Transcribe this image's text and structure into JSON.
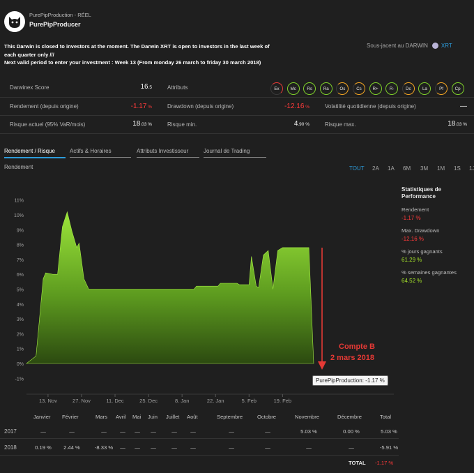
{
  "header": {
    "account_type": "PurePipProduction - RÉEL",
    "producer": "PurePipProducer"
  },
  "notice": {
    "line1": "This Darwin is closed to investors at the moment. The Darwin XRT is open to investors in the last week of each quarter only ///",
    "line2": "Next valid period to enter your investment : Week 13 (From monday 26 march to friday 30 march 2018)"
  },
  "underlying": {
    "label": "Sous-jacent au DARWIN",
    "symbol": "XRT",
    "dot_color": "#b9b3d6"
  },
  "metrics": {
    "darwinex_score_label": "Darwinex Score",
    "darwinex_score": "16",
    "darwinex_score_dec": ".5",
    "attributes_label": "Attributs",
    "rendement_label": "Rendement (depuis origine)",
    "rendement": "-1.17",
    "rendement_unit": " %",
    "drawdown_label": "Drawdown (depuis origine)",
    "drawdown": "-12.16",
    "drawdown_unit": " %",
    "volatility_label": "Volatilité quotidienne (depuis origine)",
    "volatility": "—",
    "risk_label": "Risque actuel (95% VaR/mois)",
    "risk": "18",
    "risk_dec": ".03 %",
    "risk_min_label": "Risque min.",
    "risk_min": "4",
    "risk_min_dec": ".90 %",
    "risk_max_label": "Risque max.",
    "risk_max": "18",
    "risk_max_dec": ".03 %"
  },
  "attributes": [
    {
      "code": "Ex",
      "color": "#e53935"
    },
    {
      "code": "Mc",
      "color": "#7fd12a"
    },
    {
      "code": "Rs",
      "color": "#7fd12a"
    },
    {
      "code": "Ra",
      "color": "#7fd12a"
    },
    {
      "code": "Os",
      "color": "#f5a623"
    },
    {
      "code": "Cs",
      "color": "#f5a623"
    },
    {
      "code": "R+",
      "color": "#7fd12a"
    },
    {
      "code": "R-",
      "color": "#7fd12a"
    },
    {
      "code": "Dc",
      "color": "#f5a623"
    },
    {
      "code": "La",
      "color": "#7fd12a"
    },
    {
      "code": "Pf",
      "color": "#f5a623"
    },
    {
      "code": "Cp",
      "color": "#7fd12a"
    }
  ],
  "tabs": [
    "Rendement / Risque",
    "Actifs & Horaires",
    "Attributs Investisseur",
    "Journal de Trading"
  ],
  "section_label": "Rendement",
  "ranges": [
    "TOUT",
    "2A",
    "1A",
    "6M",
    "3M",
    "1M",
    "1S",
    "1J"
  ],
  "stats": {
    "title": "Statistiques de Performance",
    "items": [
      {
        "label": "Rendement",
        "value": "-1.17 %",
        "kind": "red"
      },
      {
        "label": "Max. Drawdown",
        "value": "-12.16 %",
        "kind": "red"
      },
      {
        "label": "% jours gagnants",
        "value": "61.29 %",
        "kind": "green"
      },
      {
        "label": "% semaines gagnantes",
        "value": "64.52 %",
        "kind": "green"
      }
    ]
  },
  "annotation": {
    "line1": "Compte B",
    "line2": "2 mars 2018",
    "tooltip": "PurePipProduction: -1.17 %"
  },
  "chart_data": {
    "type": "area",
    "ylim": [
      -1,
      11
    ],
    "y_ticks": [
      "11%",
      "10%",
      "9%",
      "8%",
      "7%",
      "6%",
      "5%",
      "4%",
      "3%",
      "2%",
      "1%",
      "0%",
      "-1%"
    ],
    "x_tick_labels": [
      "13. Nov",
      "27. Nov",
      "11. Dec",
      "25. Dec",
      "8. Jan",
      "22. Jan",
      "5. Feb",
      "19. Feb"
    ],
    "x_tick_days": [
      9,
      23,
      37,
      51,
      65,
      79,
      93,
      107
    ],
    "series": [
      {
        "points": [
          [
            0,
            0
          ],
          [
            4,
            0.5
          ],
          [
            7,
            5.7
          ],
          [
            8,
            6.1
          ],
          [
            11,
            6.0
          ],
          [
            13,
            6.0
          ],
          [
            15,
            9.2
          ],
          [
            17,
            10.2
          ],
          [
            19,
            8.9
          ],
          [
            21,
            7.8
          ],
          [
            22,
            8.1
          ],
          [
            24,
            5.7
          ],
          [
            26,
            5.0
          ],
          [
            70,
            5.0
          ],
          [
            71,
            5.2
          ],
          [
            80,
            5.2
          ],
          [
            81,
            5.4
          ],
          [
            88,
            5.4
          ],
          [
            89,
            5.3
          ],
          [
            93,
            5.3
          ],
          [
            94,
            7.2
          ],
          [
            96,
            5.2
          ],
          [
            97,
            5.1
          ],
          [
            99,
            7.3
          ],
          [
            101,
            7.6
          ],
          [
            103,
            5.0
          ],
          [
            105,
            7.6
          ],
          [
            107,
            7.8
          ],
          [
            118,
            7.8
          ],
          [
            120,
            0
          ]
        ]
      }
    ]
  },
  "monthly": {
    "headers": [
      "Janvier",
      "Février",
      "Mars",
      "Avril",
      "Mai",
      "Juin",
      "Juillet",
      "Août",
      "Septembre",
      "Octobre",
      "Novembre",
      "Décembre",
      "Total"
    ],
    "rows": [
      {
        "year": "2017",
        "cells": [
          "—",
          "—",
          "—",
          "—",
          "—",
          "—",
          "—",
          "—",
          "—",
          "—",
          "5.03 %",
          "0.00 %",
          "5.03 %"
        ],
        "kinds": [
          "",
          "",
          "",
          "",
          "",
          "",
          "",
          "",
          "",
          "",
          "green",
          "green",
          "green"
        ]
      },
      {
        "year": "2018",
        "cells": [
          "0.19 %",
          "2.44 %",
          "-8.33 %",
          "—",
          "—",
          "—",
          "—",
          "—",
          "—",
          "—",
          "—",
          "—",
          "-5.91 %"
        ],
        "kinds": [
          "green",
          "green",
          "red",
          "",
          "",
          "",
          "",
          "",
          "",
          "",
          "",
          "",
          "red"
        ]
      }
    ],
    "total_label": "TOTAL",
    "total_value": "-1.17 %"
  }
}
